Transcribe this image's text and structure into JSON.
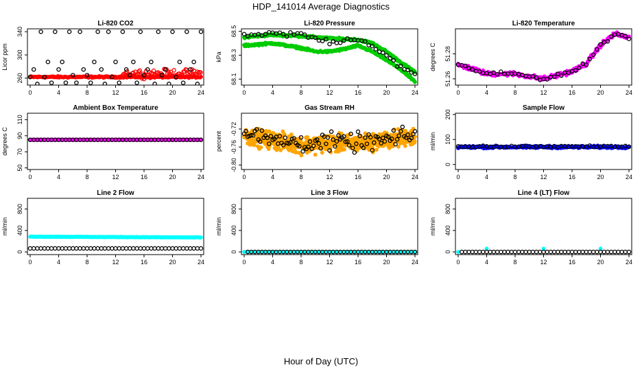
{
  "page": {
    "title": "HDP_141014  Average Diagnostics",
    "xlabel": "Hour of Day (UTC)"
  },
  "colors": {
    "axis": "#000000",
    "black_points": "#000000",
    "red": "#ff0000",
    "green": "#00cc00",
    "magenta": "#ff00ff",
    "orange": "#ffa500",
    "blue": "#0000ff",
    "cyan": "#00ffff"
  },
  "chart_data": [
    {
      "id": "co2",
      "type": "scatter",
      "title": "Li-820 CO2",
      "ylabel": "Licor ppm",
      "xlim": [
        0,
        24
      ],
      "ylim": [
        248,
        345
      ],
      "xticks": [
        0,
        4,
        8,
        12,
        16,
        20,
        24
      ],
      "yticks": [
        260,
        300,
        340
      ],
      "series": [
        {
          "name": "red dense",
          "color": "red",
          "style": "filled",
          "x0": 0,
          "x1": 24,
          "y0": 262,
          "y1": 262,
          "step": 0.1,
          "noise": 2
        },
        {
          "name": "red spikes",
          "color": "red",
          "style": "open",
          "x0": 13,
          "x1": 24,
          "y0": 268,
          "y1": 268,
          "step": 0.15,
          "noise": 10
        },
        {
          "name": "black",
          "color": "black_points",
          "style": "open",
          "x0": 0,
          "x1": 24,
          "y0": 265,
          "y1": 265,
          "step": 0.5,
          "noise": 0,
          "values": [
            262,
            275,
            250,
            340,
            262,
            288,
            252,
            340,
            275,
            288,
            252,
            340,
            265,
            252,
            340,
            275,
            265,
            252,
            288,
            340,
            275,
            250,
            340,
            262,
            288,
            252,
            340,
            275,
            265,
            288,
            252,
            340,
            265,
            275,
            288,
            250,
            340,
            265,
            275,
            250,
            340,
            262,
            288,
            252,
            340,
            275,
            288,
            250,
            340
          ]
        }
      ]
    },
    {
      "id": "pressure",
      "type": "scatter",
      "title": "Li-820 Pressure",
      "ylabel": "kPa",
      "xlim": [
        0,
        24
      ],
      "ylim": [
        68.05,
        68.52
      ],
      "xticks": [
        0,
        4,
        8,
        12,
        16,
        20,
        24
      ],
      "yticks": [
        68.1,
        68.3,
        68.5
      ],
      "series": [
        {
          "name": "green upper",
          "color": "green",
          "style": "filled",
          "profile": [
            [
              0,
              68.45
            ],
            [
              4,
              68.47
            ],
            [
              8,
              68.46
            ],
            [
              12,
              68.44
            ],
            [
              16,
              68.43
            ],
            [
              18,
              68.4
            ],
            [
              20,
              68.33
            ],
            [
              22,
              68.24
            ],
            [
              24,
              68.16
            ]
          ],
          "step": 0.08,
          "noise": 0.012
        },
        {
          "name": "green lower",
          "color": "green",
          "style": "filled",
          "profile": [
            [
              0,
              68.38
            ],
            [
              4,
              68.4
            ],
            [
              8,
              68.36
            ],
            [
              10,
              68.33
            ],
            [
              12,
              68.33
            ],
            [
              14,
              68.35
            ],
            [
              16,
              68.38
            ],
            [
              18,
              68.33
            ],
            [
              20,
              68.26
            ],
            [
              22,
              68.18
            ],
            [
              24,
              68.08
            ]
          ],
          "step": 0.08,
          "noise": 0.012
        },
        {
          "name": "black",
          "color": "black_points",
          "style": "open",
          "profile": [
            [
              0,
              68.45
            ],
            [
              4,
              68.48
            ],
            [
              8,
              68.47
            ],
            [
              12,
              68.41
            ],
            [
              16,
              68.44
            ],
            [
              18,
              68.38
            ],
            [
              20,
              68.3
            ],
            [
              22,
              68.2
            ],
            [
              24,
              68.13
            ]
          ],
          "step": 0.5,
          "noise": 0.035
        }
      ]
    },
    {
      "id": "temperature",
      "type": "scatter",
      "title": "Li-820 Temperature",
      "ylabel": "degrees C",
      "xlim": [
        0,
        24
      ],
      "ylim": [
        51.255,
        51.3
      ],
      "xticks": [
        0,
        4,
        8,
        12,
        16,
        20,
        24
      ],
      "yticks": [
        51.26,
        51.28
      ],
      "ytick_labels": [
        "51.26",
        "51.28"
      ],
      "series": [
        {
          "name": "magenta",
          "color": "magenta",
          "style": "filled",
          "profile": [
            [
              0,
              51.271
            ],
            [
              2,
              51.268
            ],
            [
              4,
              51.264
            ],
            [
              8,
              51.264
            ],
            [
              12,
              51.26
            ],
            [
              14,
              51.263
            ],
            [
              16,
              51.266
            ],
            [
              18,
              51.272
            ],
            [
              20,
              51.287
            ],
            [
              22,
              51.296
            ],
            [
              24,
              51.293
            ]
          ],
          "step": 0.1,
          "noise": 0.0025
        },
        {
          "name": "black",
          "color": "black_points",
          "style": "open",
          "profile": [
            [
              0,
              51.271
            ],
            [
              2,
              51.268
            ],
            [
              4,
              51.264
            ],
            [
              8,
              51.264
            ],
            [
              12,
              51.26
            ],
            [
              14,
              51.263
            ],
            [
              16,
              51.266
            ],
            [
              18,
              51.272
            ],
            [
              20,
              51.287
            ],
            [
              22,
              51.296
            ],
            [
              24,
              51.293
            ]
          ],
          "step": 0.5,
          "noise": 0.002
        }
      ]
    },
    {
      "id": "ambient",
      "type": "scatter",
      "title": "Ambient Box Temperature",
      "ylabel": "degrees C",
      "xlim": [
        0,
        24
      ],
      "ylim": [
        48,
        118
      ],
      "xticks": [
        0,
        4,
        8,
        12,
        16,
        20,
        24
      ],
      "yticks": [
        50,
        70,
        90,
        110
      ],
      "series": [
        {
          "name": "magenta",
          "color": "magenta",
          "style": "filled",
          "x0": 0,
          "x1": 24,
          "y0": 85,
          "y1": 85,
          "step": 0.1,
          "noise": 0
        },
        {
          "name": "black",
          "color": "black_points",
          "style": "open",
          "x0": 0,
          "x1": 24,
          "y0": 85,
          "y1": 85,
          "step": 0.5,
          "noise": 0
        }
      ]
    },
    {
      "id": "rh",
      "type": "scatter",
      "title": "Gas Stream RH",
      "ylabel": "percent",
      "xlim": [
        0,
        24
      ],
      "ylim": [
        -0.81,
        -0.685
      ],
      "xticks": [
        0,
        4,
        8,
        12,
        16,
        20,
        24
      ],
      "yticks": [
        -0.8,
        -0.76,
        -0.72
      ],
      "ytick_labels": [
        "-0.80",
        "-0.76",
        "-0.72"
      ],
      "series": [
        {
          "name": "orange",
          "color": "orange",
          "style": "filled",
          "profile": [
            [
              0,
              -0.735
            ],
            [
              4,
              -0.745
            ],
            [
              8,
              -0.755
            ],
            [
              12,
              -0.752
            ],
            [
              16,
              -0.752
            ],
            [
              20,
              -0.745
            ],
            [
              24,
              -0.735
            ]
          ],
          "step": 0.04,
          "noise": 0.028
        },
        {
          "name": "black",
          "color": "black_points",
          "style": "open",
          "profile": [
            [
              0,
              -0.73
            ],
            [
              4,
              -0.745
            ],
            [
              8,
              -0.75
            ],
            [
              12,
              -0.75
            ],
            [
              16,
              -0.75
            ],
            [
              20,
              -0.745
            ],
            [
              24,
              -0.735
            ]
          ],
          "step": 0.25,
          "noise": 0.03
        }
      ]
    },
    {
      "id": "sample_flow",
      "type": "scatter",
      "title": "Sample Flow",
      "ylabel": "ml/min",
      "xlim": [
        0,
        24
      ],
      "ylim": [
        -20,
        205
      ],
      "xticks": [
        0,
        4,
        8,
        12,
        16,
        20,
        24
      ],
      "yticks": [
        0,
        100,
        200
      ],
      "series": [
        {
          "name": "blue",
          "color": "blue",
          "style": "filled",
          "x0": 0,
          "x1": 24,
          "y0": 70,
          "y1": 70,
          "step": 0.1,
          "noise": 7
        },
        {
          "name": "black",
          "color": "black_points",
          "style": "open",
          "x0": 0,
          "x1": 24,
          "y0": 72,
          "y1": 72,
          "step": 0.5,
          "noise": 4
        }
      ]
    },
    {
      "id": "line2",
      "type": "scatter",
      "title": "Line 2 Flow",
      "ylabel": "ml/min",
      "xlim": [
        0,
        24
      ],
      "ylim": [
        -50,
        1000
      ],
      "xticks": [
        0,
        4,
        8,
        12,
        16,
        20,
        24
      ],
      "yticks": [
        0,
        400,
        800
      ],
      "series": [
        {
          "name": "cyan",
          "color": "cyan",
          "style": "filled",
          "x0": 0,
          "x1": 24,
          "y0": 285,
          "y1": 270,
          "step": 0.1,
          "noise": 6
        },
        {
          "name": "black",
          "color": "black_points",
          "style": "open",
          "x0": 0,
          "x1": 24,
          "y0": 65,
          "y1": 65,
          "step": 0.5,
          "noise": 0
        }
      ]
    },
    {
      "id": "line3",
      "type": "scatter",
      "title": "Line 3 Flow",
      "ylabel": "ml/min",
      "xlim": [
        0,
        24
      ],
      "ylim": [
        -50,
        1000
      ],
      "xticks": [
        0,
        4,
        8,
        12,
        16,
        20,
        24
      ],
      "yticks": [
        0,
        400,
        800
      ],
      "series": [
        {
          "name": "cyan",
          "color": "cyan",
          "style": "filled",
          "x0": 0,
          "x1": 24,
          "y0": 0,
          "y1": 0,
          "step": 0.5,
          "noise": 0
        },
        {
          "name": "black",
          "color": "black_points",
          "style": "open",
          "x0": 0.5,
          "x1": 24,
          "y0": 0,
          "y1": 0,
          "step": 0.5,
          "noise": 0
        }
      ]
    },
    {
      "id": "line4",
      "type": "scatter",
      "title": "Line 4 (LT) Flow",
      "ylabel": "ml/min",
      "xlim": [
        0,
        24
      ],
      "ylim": [
        -50,
        1000
      ],
      "xticks": [
        0,
        4,
        8,
        12,
        16,
        20,
        24
      ],
      "yticks": [
        0,
        400,
        800
      ],
      "series": [
        {
          "name": "cyan",
          "color": "cyan",
          "style": "filled",
          "points": [
            [
              0,
              0
            ],
            [
              4,
              60
            ],
            [
              12,
              60
            ],
            [
              20,
              60
            ]
          ]
        },
        {
          "name": "black",
          "color": "black_points",
          "style": "open",
          "x0": 0.5,
          "x1": 24,
          "y0": 0,
          "y1": 0,
          "step": 0.5,
          "noise": 0
        }
      ]
    }
  ]
}
